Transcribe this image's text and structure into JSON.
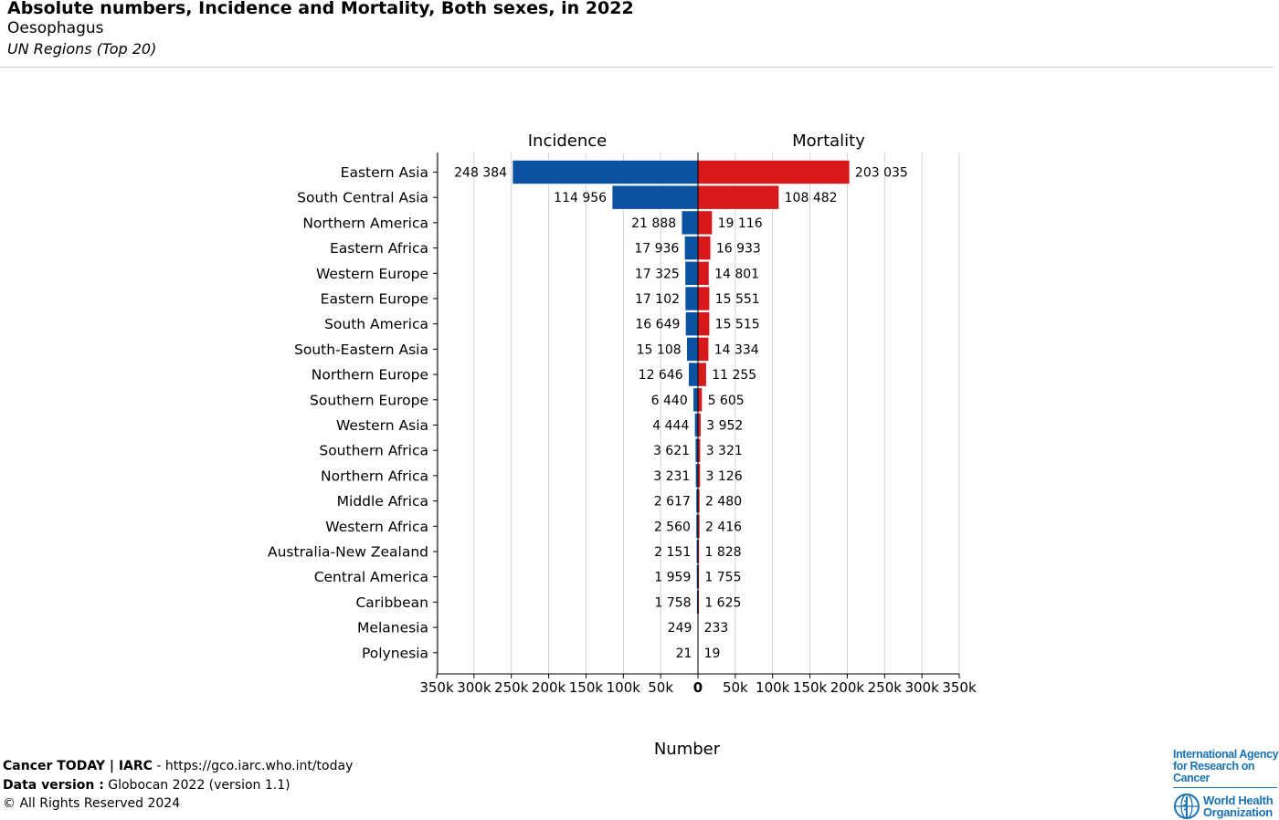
{
  "header": {
    "title": "Absolute numbers, Incidence and Mortality, Both sexes, in 2022",
    "subtitle": "Oesophagus",
    "subsubtitle": "UN Regions (Top 20)"
  },
  "chart_data": {
    "type": "bar",
    "orientation": "horizontal-butterfly",
    "categories": [
      "Eastern Asia",
      "South Central Asia",
      "Northern America",
      "Eastern Africa",
      "Western Europe",
      "Eastern Europe",
      "South America",
      "South-Eastern Asia",
      "Northern Europe",
      "Southern Europe",
      "Western Asia",
      "Southern Africa",
      "Northern Africa",
      "Middle Africa",
      "Western Africa",
      "Australia-New Zealand",
      "Central America",
      "Caribbean",
      "Melanesia",
      "Polynesia"
    ],
    "series": [
      {
        "name": "Incidence",
        "color": "#0b52a3",
        "side": "left",
        "values": [
          248384,
          114956,
          21888,
          17936,
          17325,
          17102,
          16649,
          15108,
          12646,
          6440,
          4444,
          3621,
          3231,
          2617,
          2560,
          2151,
          1959,
          1758,
          249,
          21
        ],
        "labels": [
          "248 384",
          "114 956",
          "21 888",
          "17 936",
          "17 325",
          "17 102",
          "16 649",
          "15 108",
          "12 646",
          "6 440",
          "4 444",
          "3 621",
          "3 231",
          "2 617",
          "2 560",
          "2 151",
          "1 959",
          "1 758",
          "249",
          "21"
        ]
      },
      {
        "name": "Mortality",
        "color": "#d7191c",
        "side": "right",
        "values": [
          203035,
          108482,
          19116,
          16933,
          14801,
          15551,
          15515,
          14334,
          11255,
          5605,
          3952,
          3321,
          3126,
          2480,
          2416,
          1828,
          1755,
          1625,
          233,
          19
        ],
        "labels": [
          "203 035",
          "108 482",
          "19 116",
          "16 933",
          "14 801",
          "15 551",
          "15 515",
          "14 334",
          "11 255",
          "5 605",
          "3 952",
          "3 321",
          "3 126",
          "2 480",
          "2 416",
          "1 828",
          "1 755",
          "1 625",
          "233",
          "19"
        ]
      }
    ],
    "xlabel": "Number",
    "xlim": [
      -350000,
      350000
    ],
    "ticks": [
      -350000,
      -300000,
      -250000,
      -200000,
      -150000,
      -100000,
      -50000,
      0,
      50000,
      100000,
      150000,
      200000,
      250000,
      300000,
      350000
    ],
    "tick_labels": [
      "350k",
      "300k",
      "250k",
      "200k",
      "150k",
      "100k",
      "50k",
      "0",
      "50k",
      "100k",
      "150k",
      "200k",
      "250k",
      "300k",
      "350k"
    ],
    "grid": true
  },
  "footer": {
    "line1_bold": "Cancer TODAY | IARC",
    "line1_rest": " - https://gco.iarc.who.int/today",
    "line2_bold": "Data version :",
    "line2_rest": " Globocan 2022 (version 1.1)",
    "line3": "© All Rights Reserved 2024"
  },
  "logos": {
    "iarc_line1": "International Agency",
    "iarc_line2": "for Research on Cancer",
    "who_line1": "World Health",
    "who_line2": "Organization",
    "who_color": "#1a73b5"
  }
}
